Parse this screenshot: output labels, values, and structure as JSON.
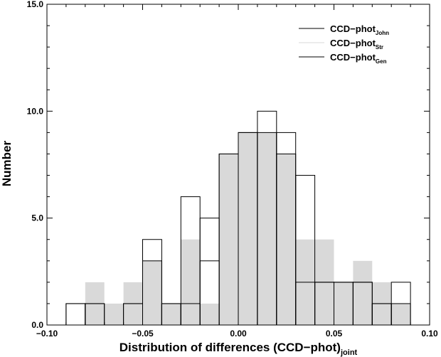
{
  "chart_data": {
    "type": "bar",
    "title": "",
    "xlabel": "Distribution of differences (CCD−phot)",
    "xlabel_subscript": "joint",
    "ylabel": "Number",
    "xlim": [
      -0.1,
      0.1
    ],
    "ylim": [
      0,
      15
    ],
    "bin_width": 0.01,
    "x_ticks": [
      "−0.10",
      "−0.05",
      "0.00",
      "0.05",
      "0.10"
    ],
    "x_tick_values": [
      -0.1,
      -0.05,
      0.0,
      0.05,
      0.1
    ],
    "y_ticks": [
      "0.0",
      "5.0",
      "10.0",
      "15.0"
    ],
    "y_tick_values": [
      0,
      5,
      10,
      15
    ],
    "bin_starts": [
      -0.09,
      -0.08,
      -0.07,
      -0.06,
      -0.05,
      -0.04,
      -0.03,
      -0.02,
      -0.01,
      0.0,
      0.01,
      0.02,
      0.03,
      0.04,
      0.05,
      0.06,
      0.07,
      0.08
    ],
    "series": [
      {
        "name": "CCD−phot",
        "subscript": "John",
        "style": "outline",
        "color": "#000000",
        "values": [
          1,
          1,
          0,
          1,
          4,
          1,
          6,
          5,
          8,
          9,
          10,
          9,
          7,
          2,
          2,
          2,
          1,
          2
        ]
      },
      {
        "name": "CCD−phot",
        "subscript": "Str",
        "style": "filled",
        "color": "#d9d9d9",
        "values": [
          0,
          2,
          1,
          2,
          3,
          1,
          4,
          1,
          8,
          9,
          9,
          8,
          4,
          4,
          2,
          3,
          2,
          1
        ]
      },
      {
        "name": "CCD−phot",
        "subscript": "Gen",
        "style": "outline",
        "color": "#000000",
        "values": [
          1,
          1,
          0,
          1,
          3,
          1,
          1,
          3,
          8,
          9,
          9,
          8,
          2,
          2,
          2,
          2,
          1,
          1
        ]
      }
    ],
    "legend_placement": "top-right",
    "grid": false
  }
}
